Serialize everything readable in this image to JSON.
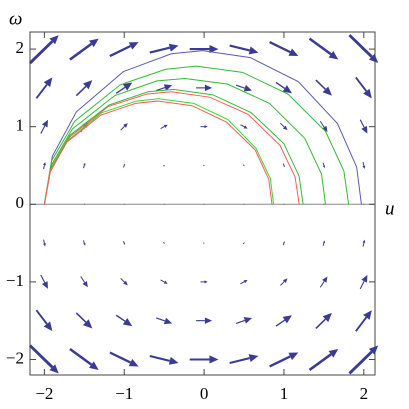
{
  "chart_data": {
    "type": "vector_field",
    "xlabel": "u",
    "ylabel": "ω",
    "xlim": [
      -2.18,
      2.14
    ],
    "ylim": [
      -2.2,
      2.22
    ],
    "xticks": [
      {
        "value": -2,
        "label": "−2"
      },
      {
        "value": -1,
        "label": "−1"
      },
      0,
      1,
      2
    ],
    "yticks": [
      {
        "value": -2,
        "label": "−2"
      },
      {
        "value": -1,
        "label": "−1"
      },
      0,
      1,
      2
    ],
    "field": {
      "color": "#3b3b96",
      "u": [
        -2,
        -1.5,
        -1,
        -0.5,
        0,
        0.5,
        1,
        1.5,
        2
      ],
      "w": [
        2,
        1.5,
        1,
        0.5,
        0,
        -0.5,
        -1,
        -1.5,
        -2
      ],
      "du": [
        [
          0.36,
          0.36,
          0.36,
          0.36,
          0.36,
          0.36,
          0.36,
          0.36,
          0.36
        ],
        [
          0.2,
          0.2,
          0.2,
          0.2,
          0.2,
          0.2,
          0.2,
          0.2,
          0.2
        ],
        [
          0.09,
          0.09,
          0.09,
          0.09,
          0.09,
          0.09,
          0.09,
          0.09,
          0.09
        ],
        [
          0.02,
          0.02,
          0.02,
          0.02,
          0.02,
          0.02,
          0.02,
          0.02,
          0.02
        ],
        [
          0,
          0,
          0,
          0,
          0,
          0,
          0,
          0,
          0
        ],
        [
          0.02,
          0.02,
          0.02,
          0.02,
          0.02,
          0.02,
          0.02,
          0.02,
          0.02
        ],
        [
          0.09,
          0.09,
          0.09,
          0.09,
          0.09,
          0.09,
          0.09,
          0.09,
          0.09
        ],
        [
          0.2,
          0.2,
          0.2,
          0.2,
          0.2,
          0.2,
          0.2,
          0.2,
          0.2
        ],
        [
          0.36,
          0.36,
          0.36,
          0.36,
          0.36,
          0.36,
          0.36,
          0.36,
          0.36
        ]
      ],
      "dw": [
        [
          0.36,
          0.27,
          0.18,
          0.09,
          0,
          -0.09,
          -0.18,
          -0.27,
          -0.36
        ],
        [
          0.27,
          0.2,
          0.14,
          0.07,
          0,
          -0.07,
          -0.14,
          -0.2,
          -0.27
        ],
        [
          0.18,
          0.14,
          0.09,
          0.05,
          0,
          -0.05,
          -0.09,
          -0.14,
          -0.18
        ],
        [
          0.09,
          0.07,
          0.05,
          0.02,
          0,
          -0.02,
          -0.05,
          -0.07,
          -0.09
        ],
        [
          0,
          0,
          0,
          0,
          0,
          0,
          0,
          0,
          0
        ],
        [
          -0.09,
          -0.07,
          -0.05,
          -0.02,
          0,
          0.02,
          0.05,
          0.07,
          0.09
        ],
        [
          -0.18,
          -0.14,
          -0.09,
          -0.05,
          0,
          0.05,
          0.09,
          0.14,
          0.18
        ],
        [
          -0.27,
          -0.2,
          -0.14,
          -0.07,
          0,
          0.07,
          0.14,
          0.2,
          0.27
        ],
        [
          -0.36,
          -0.27,
          -0.18,
          -0.09,
          0,
          0.09,
          0.18,
          0.27,
          0.36
        ]
      ]
    },
    "curves": [
      {
        "color": "#5a5ab4",
        "x": [
          -2,
          -1.9,
          -1.6,
          -1.01,
          -0.41,
          -0.02,
          0.58,
          1.18,
          1.67,
          1.91,
          1.97
        ],
        "values": [
          0,
          0.62,
          1.19,
          1.71,
          1.94,
          1.98,
          1.89,
          1.58,
          1.04,
          0.48,
          0
        ]
      },
      {
        "color": "#33bb33",
        "x": [
          -2,
          -1.91,
          -1.62,
          -1.05,
          -0.48,
          -0.1,
          0.48,
          1.05,
          1.52,
          1.75,
          1.81
        ],
        "values": [
          0,
          0.56,
          1.07,
          1.54,
          1.74,
          1.78,
          1.7,
          1.42,
          0.94,
          0.43,
          0
        ]
      },
      {
        "color": "#33bb33",
        "x": [
          -2,
          -1.91,
          -1.65,
          -1.12,
          -0.59,
          -0.24,
          0.29,
          0.82,
          1.26,
          1.47,
          1.52
        ],
        "values": [
          0,
          0.51,
          0.97,
          1.4,
          1.59,
          1.62,
          1.55,
          1.3,
          0.85,
          0.39,
          0
        ]
      },
      {
        "color": "#33bb33",
        "x": [
          -2,
          -1.92,
          -1.68,
          -1.19,
          -0.7,
          -0.38,
          0.11,
          0.59,
          1.0,
          1.19,
          1.24
        ],
        "values": [
          0,
          0.46,
          0.89,
          1.28,
          1.45,
          1.48,
          1.41,
          1.18,
          0.78,
          0.36,
          0
        ]
      },
      {
        "color": "#ff5a5a",
        "x": [
          -2,
          -1.92,
          -1.68,
          -1.2,
          -0.72,
          -0.41,
          0.07,
          0.55,
          0.95,
          1.14,
          1.19
        ],
        "values": [
          0,
          0.45,
          0.87,
          1.26,
          1.42,
          1.45,
          1.38,
          1.16,
          0.76,
          0.35,
          0
        ]
      },
      {
        "color": "#33dd33",
        "x": [
          -2,
          -1.93,
          -1.71,
          -1.28,
          -0.85,
          -0.57,
          -0.13,
          0.3,
          0.65,
          0.83,
          0.87
        ],
        "values": [
          0,
          0.42,
          0.82,
          1.18,
          1.33,
          1.36,
          1.3,
          1.09,
          0.72,
          0.33,
          0
        ]
      },
      {
        "color": "#ff5a5a",
        "x": [
          -2,
          -1.93,
          -1.72,
          -1.29,
          -0.86,
          -0.58,
          -0.15,
          0.28,
          0.64,
          0.81,
          0.85
        ],
        "values": [
          0,
          0.41,
          0.8,
          1.15,
          1.3,
          1.33,
          1.27,
          1.06,
          0.7,
          0.32,
          0
        ]
      }
    ]
  }
}
